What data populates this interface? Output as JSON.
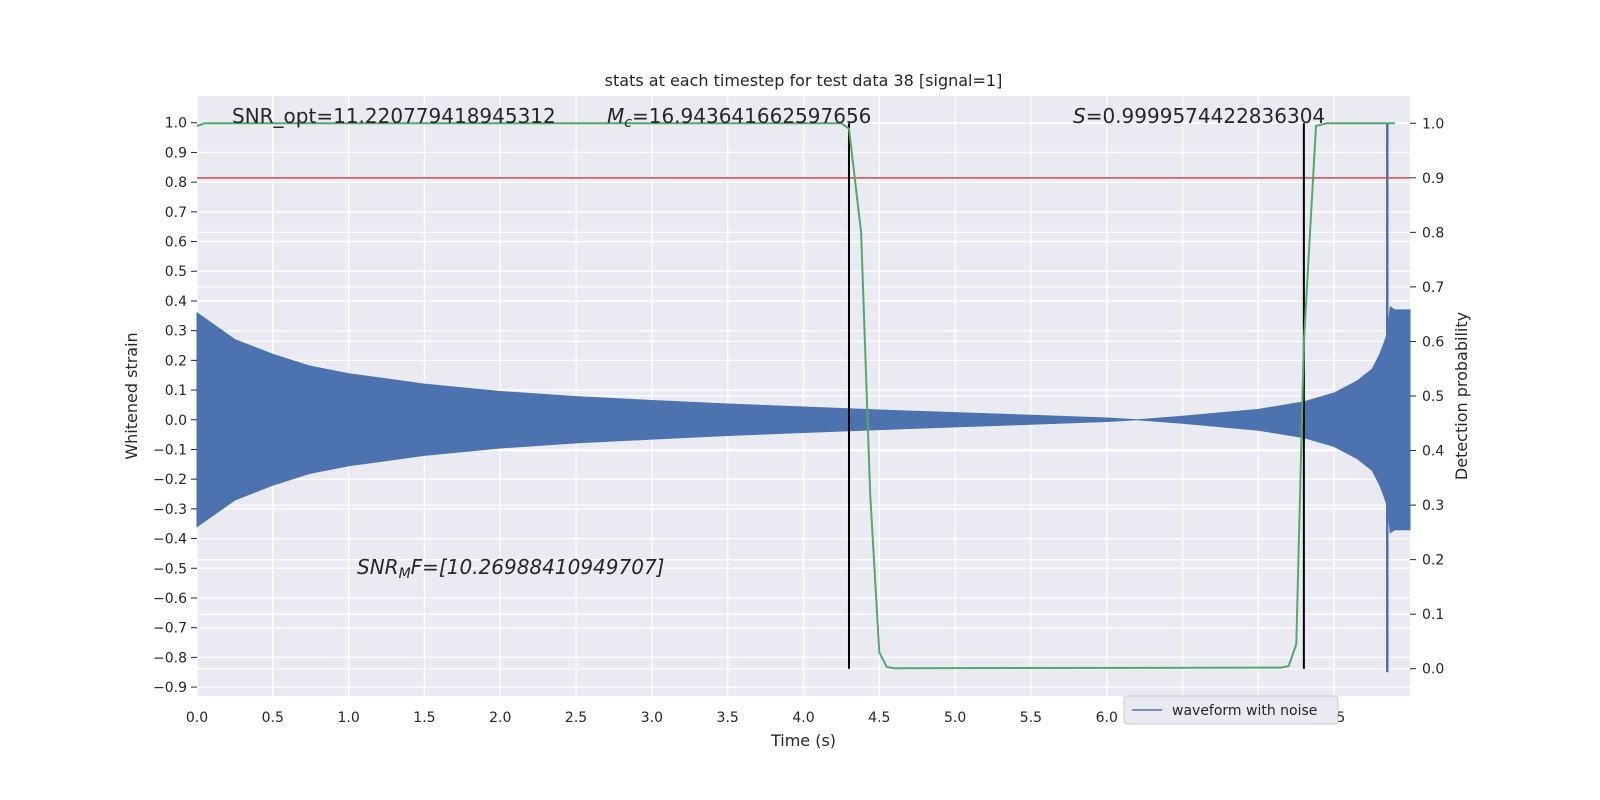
{
  "chart_data": {
    "type": "line",
    "title": "stats at each timestep for test data 38 [signal=1]",
    "xlabel": "Time (s)",
    "ylabel": "Whitened strain",
    "y2label": "Detection probability",
    "xlim": [
      0.0,
      8.0
    ],
    "ylim": [
      -0.93,
      1.09
    ],
    "y2lim": [
      -0.05,
      1.05
    ],
    "xticks": [
      0.0,
      0.5,
      1.0,
      1.5,
      2.0,
      2.5,
      3.0,
      3.5,
      4.0,
      4.5,
      5.0,
      5.5,
      6.0,
      6.5,
      7.0,
      7.5
    ],
    "xtick_labels": [
      "0.0",
      "0.5",
      "1.0",
      "1.5",
      "2.0",
      "2.5",
      "3.0",
      "3.5",
      "4.0",
      "4.5",
      "5.0",
      "5.5",
      "6.0",
      "6.5",
      "7.0",
      "7.5"
    ],
    "yticks": [
      1.0,
      0.9,
      0.8,
      0.7,
      0.6,
      0.5,
      0.4,
      0.3,
      0.2,
      0.1,
      0.0,
      -0.1,
      -0.2,
      -0.3,
      -0.4,
      -0.5,
      -0.6,
      -0.7,
      -0.8,
      -0.9
    ],
    "ytick_labels": [
      "1.0",
      "0.9",
      "0.8",
      "0.7",
      "0.6",
      "0.5",
      "0.4",
      "0.3",
      "0.2",
      "0.1",
      "0.0",
      "−0.1",
      "−0.2",
      "−0.3",
      "−0.4",
      "−0.5",
      "−0.6",
      "−0.7",
      "−0.8",
      "−0.9"
    ],
    "y2ticks": [
      1.0,
      0.9,
      0.8,
      0.7,
      0.6,
      0.5,
      0.4,
      0.3,
      0.2,
      0.1,
      0.0
    ],
    "y2tick_labels": [
      "1.0",
      "0.9",
      "0.8",
      "0.7",
      "0.6",
      "0.5",
      "0.4",
      "0.3",
      "0.2",
      "0.1",
      "0.0"
    ],
    "grid": true,
    "legend": {
      "placement": "lower-right",
      "entries": [
        "waveform with noise"
      ]
    },
    "annotations": {
      "snr_opt": "SNR_opt=11.220779418945312",
      "mc_prefix": "M",
      "mc_sub": "c",
      "mc_value": "=16.943641662597656",
      "s_prefix": "S",
      "s_value": "=0.9999574422836304",
      "snrmf_prefix": "SNR",
      "snrmf_sub": "M",
      "snrmf_value": "F=[10.26988410949707]"
    },
    "waveform_envelope": {
      "name": "waveform with noise",
      "color": "#4c72b0",
      "time": [
        0.0,
        0.25,
        0.5,
        0.75,
        1.0,
        1.5,
        2.0,
        2.5,
        3.0,
        3.5,
        4.0,
        4.5,
        5.0,
        5.5,
        6.0,
        6.2,
        6.5,
        7.0,
        7.3,
        7.5,
        7.65,
        7.75,
        7.8,
        7.83,
        7.85,
        7.87,
        7.9,
        8.0
      ],
      "amplitude": [
        0.36,
        0.27,
        0.22,
        0.18,
        0.155,
        0.12,
        0.095,
        0.078,
        0.065,
        0.053,
        0.043,
        0.033,
        0.024,
        0.015,
        0.006,
        0.0,
        0.012,
        0.035,
        0.06,
        0.09,
        0.13,
        0.17,
        0.22,
        0.26,
        0.29,
        0.38,
        0.37,
        0.37
      ]
    },
    "waveform_spike": {
      "time": 7.85,
      "ymin": -0.85,
      "ymax": 1.0
    },
    "detection_probability": {
      "color": "#55a868",
      "time": [
        0.0,
        0.05,
        0.1,
        4.0,
        4.25,
        4.3,
        4.38,
        4.44,
        4.5,
        4.55,
        4.6,
        7.15,
        7.2,
        7.25,
        7.3,
        7.38,
        7.45,
        7.5,
        7.9
      ],
      "values": [
        0.995,
        1.0,
        1.0,
        1.0,
        1.0,
        0.99,
        0.8,
        0.32,
        0.03,
        0.003,
        0.001,
        0.002,
        0.005,
        0.045,
        0.6,
        0.995,
        1.0,
        1.0,
        1.0
      ]
    },
    "threshold_line": {
      "color": "#c44e52",
      "y2": 0.9
    },
    "vertical_lines": {
      "color": "#000000",
      "times": [
        4.3,
        7.3
      ],
      "y2_min": 0.0,
      "y2_max": 1.0
    }
  }
}
